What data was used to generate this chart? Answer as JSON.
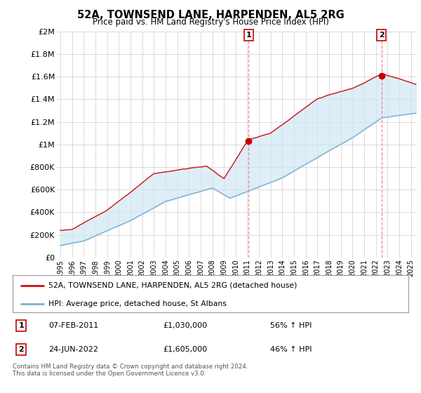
{
  "title": "52A, TOWNSEND LANE, HARPENDEN, AL5 2RG",
  "subtitle": "Price paid vs. HM Land Registry's House Price Index (HPI)",
  "ylim": [
    0,
    2000000
  ],
  "yticks": [
    0,
    200000,
    400000,
    600000,
    800000,
    1000000,
    1200000,
    1400000,
    1600000,
    1800000,
    2000000
  ],
  "ytick_labels": [
    "£0",
    "£200K",
    "£400K",
    "£600K",
    "£800K",
    "£1M",
    "£1.2M",
    "£1.4M",
    "£1.6M",
    "£1.8M",
    "£2M"
  ],
  "hpi_color": "#7aadd4",
  "hpi_fill_color": "#d0e8f5",
  "price_color": "#cc1111",
  "marker_color": "#cc0000",
  "vline_color": "#ee8888",
  "annotation1_year": 2011.1,
  "annotation1_value": 1030000,
  "annotation2_year": 2022.47,
  "annotation2_value": 1605000,
  "legend_line1": "52A, TOWNSEND LANE, HARPENDEN, AL5 2RG (detached house)",
  "legend_line2": "HPI: Average price, detached house, St Albans",
  "footer": "Contains HM Land Registry data © Crown copyright and database right 2024.\nThis data is licensed under the Open Government Licence v3.0.",
  "background_color": "#ffffff",
  "grid_color": "#cccccc",
  "xlim_left": 1994.7,
  "xlim_right": 2025.5
}
